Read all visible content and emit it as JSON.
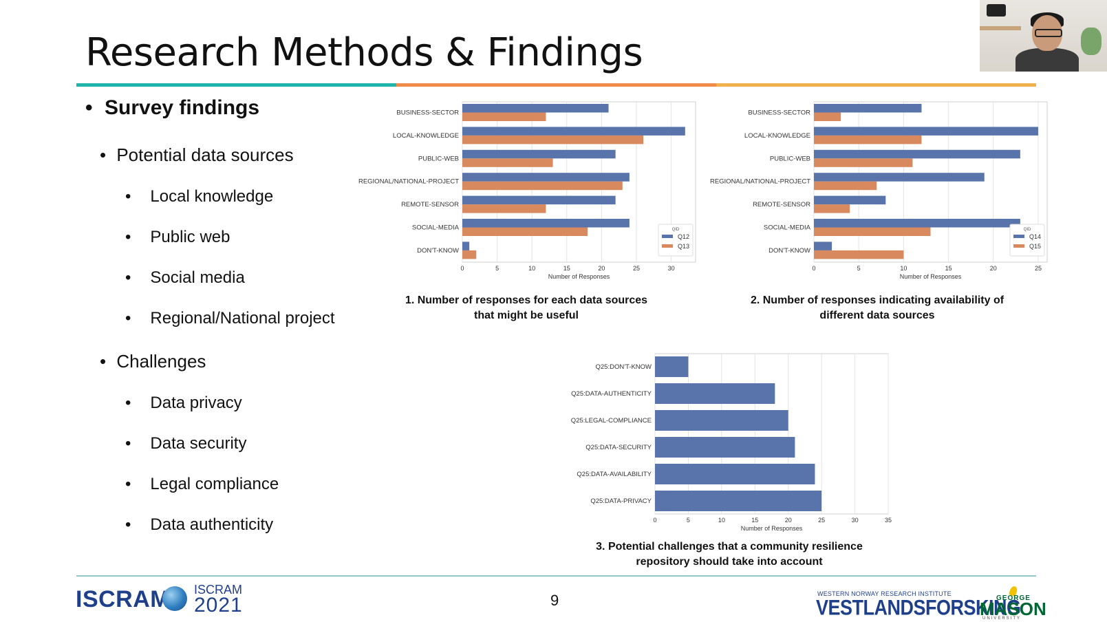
{
  "slide": {
    "title": "Research Methods & Findings",
    "page_number": "9",
    "title_bar_colors": [
      "#1fb5ad",
      "#ef8a4a",
      "#f2b24b"
    ]
  },
  "bullets": {
    "l1": "Survey findings",
    "sources_heading": "Potential data sources",
    "sources": [
      "Local knowledge",
      "Public web",
      "Social media",
      "Regional/National project"
    ],
    "challenges_heading": "Challenges",
    "challenges": [
      "Data privacy",
      "Data security",
      "Legal compliance",
      "Data authenticity"
    ]
  },
  "captions": {
    "c1_line1": "1. Number of responses for each data sources",
    "c1_line2": "that might be useful",
    "c2_line1": "2. Number of responses indicating availability of",
    "c2_line2": "different data sources",
    "c3_line1": "3. Potential challenges that a community resilience",
    "c3_line2": "repository should take into account"
  },
  "footer": {
    "iscram": "ISCRAM",
    "iscram_small": "ISCRAM",
    "iscram_year": "2021",
    "vest_small": "WESTERN NORWAY RESEARCH INSTITUTE",
    "vest": "VESTLANDSFORSKING",
    "gm_top": "GEORGE",
    "gm_main": "MASON",
    "gm_bottom": "UNIVERSITY"
  },
  "chart_data": [
    {
      "type": "bar",
      "orientation": "horizontal",
      "categories": [
        "BUSINESS-SECTOR",
        "LOCAL-KNOWLEDGE",
        "PUBLIC-WEB",
        "REGIONAL/NATIONAL-PROJECT",
        "REMOTE-SENSOR",
        "SOCIAL-MEDIA",
        "DON'T-KNOW"
      ],
      "series": [
        {
          "name": "Q12",
          "values": [
            21,
            32,
            22,
            24,
            22,
            24,
            1
          ],
          "color": "#5874aa"
        },
        {
          "name": "Q13",
          "values": [
            12,
            26,
            13,
            23,
            12,
            18,
            2
          ],
          "color": "#d8895d"
        }
      ],
      "xlabel": "Number of Responses",
      "xticks": [
        0,
        5,
        10,
        15,
        20,
        25,
        30
      ],
      "xlim": [
        0,
        33.5
      ],
      "legend_title": "QID",
      "legend_position": "bottom-right"
    },
    {
      "type": "bar",
      "orientation": "horizontal",
      "categories": [
        "BUSINESS-SECTOR",
        "LOCAL-KNOWLEDGE",
        "PUBLIC-WEB",
        "REGIONAL/NATIONAL-PROJECT",
        "REMOTE-SENSOR",
        "SOCIAL-MEDIA",
        "DON'T-KNOW"
      ],
      "series": [
        {
          "name": "Q14",
          "values": [
            12,
            25,
            23,
            19,
            8,
            23,
            2
          ],
          "color": "#5874aa"
        },
        {
          "name": "Q15",
          "values": [
            3,
            12,
            11,
            7,
            4,
            13,
            10
          ],
          "color": "#d8895d"
        }
      ],
      "xlabel": "Number of Responses",
      "xticks": [
        0,
        5,
        10,
        15,
        20,
        25
      ],
      "xlim": [
        0,
        26
      ],
      "legend_title": "QID",
      "legend_position": "bottom-right"
    },
    {
      "type": "bar",
      "orientation": "horizontal",
      "categories": [
        "Q25:DON'T-KNOW",
        "Q25:DATA-AUTHENTICITY",
        "Q25:LEGAL-COMPLIANCE",
        "Q25:DATA-SECURITY",
        "Q25:DATA-AVAILABILITY",
        "Q25:DATA-PRIVACY"
      ],
      "series": [
        {
          "values": [
            5,
            18,
            20,
            21,
            24,
            25
          ],
          "color": "#5874aa"
        }
      ],
      "xlabel": "Number of Responses",
      "xticks": [
        0,
        5,
        10,
        15,
        20,
        25,
        30,
        35
      ],
      "xlim": [
        0,
        35
      ]
    }
  ]
}
